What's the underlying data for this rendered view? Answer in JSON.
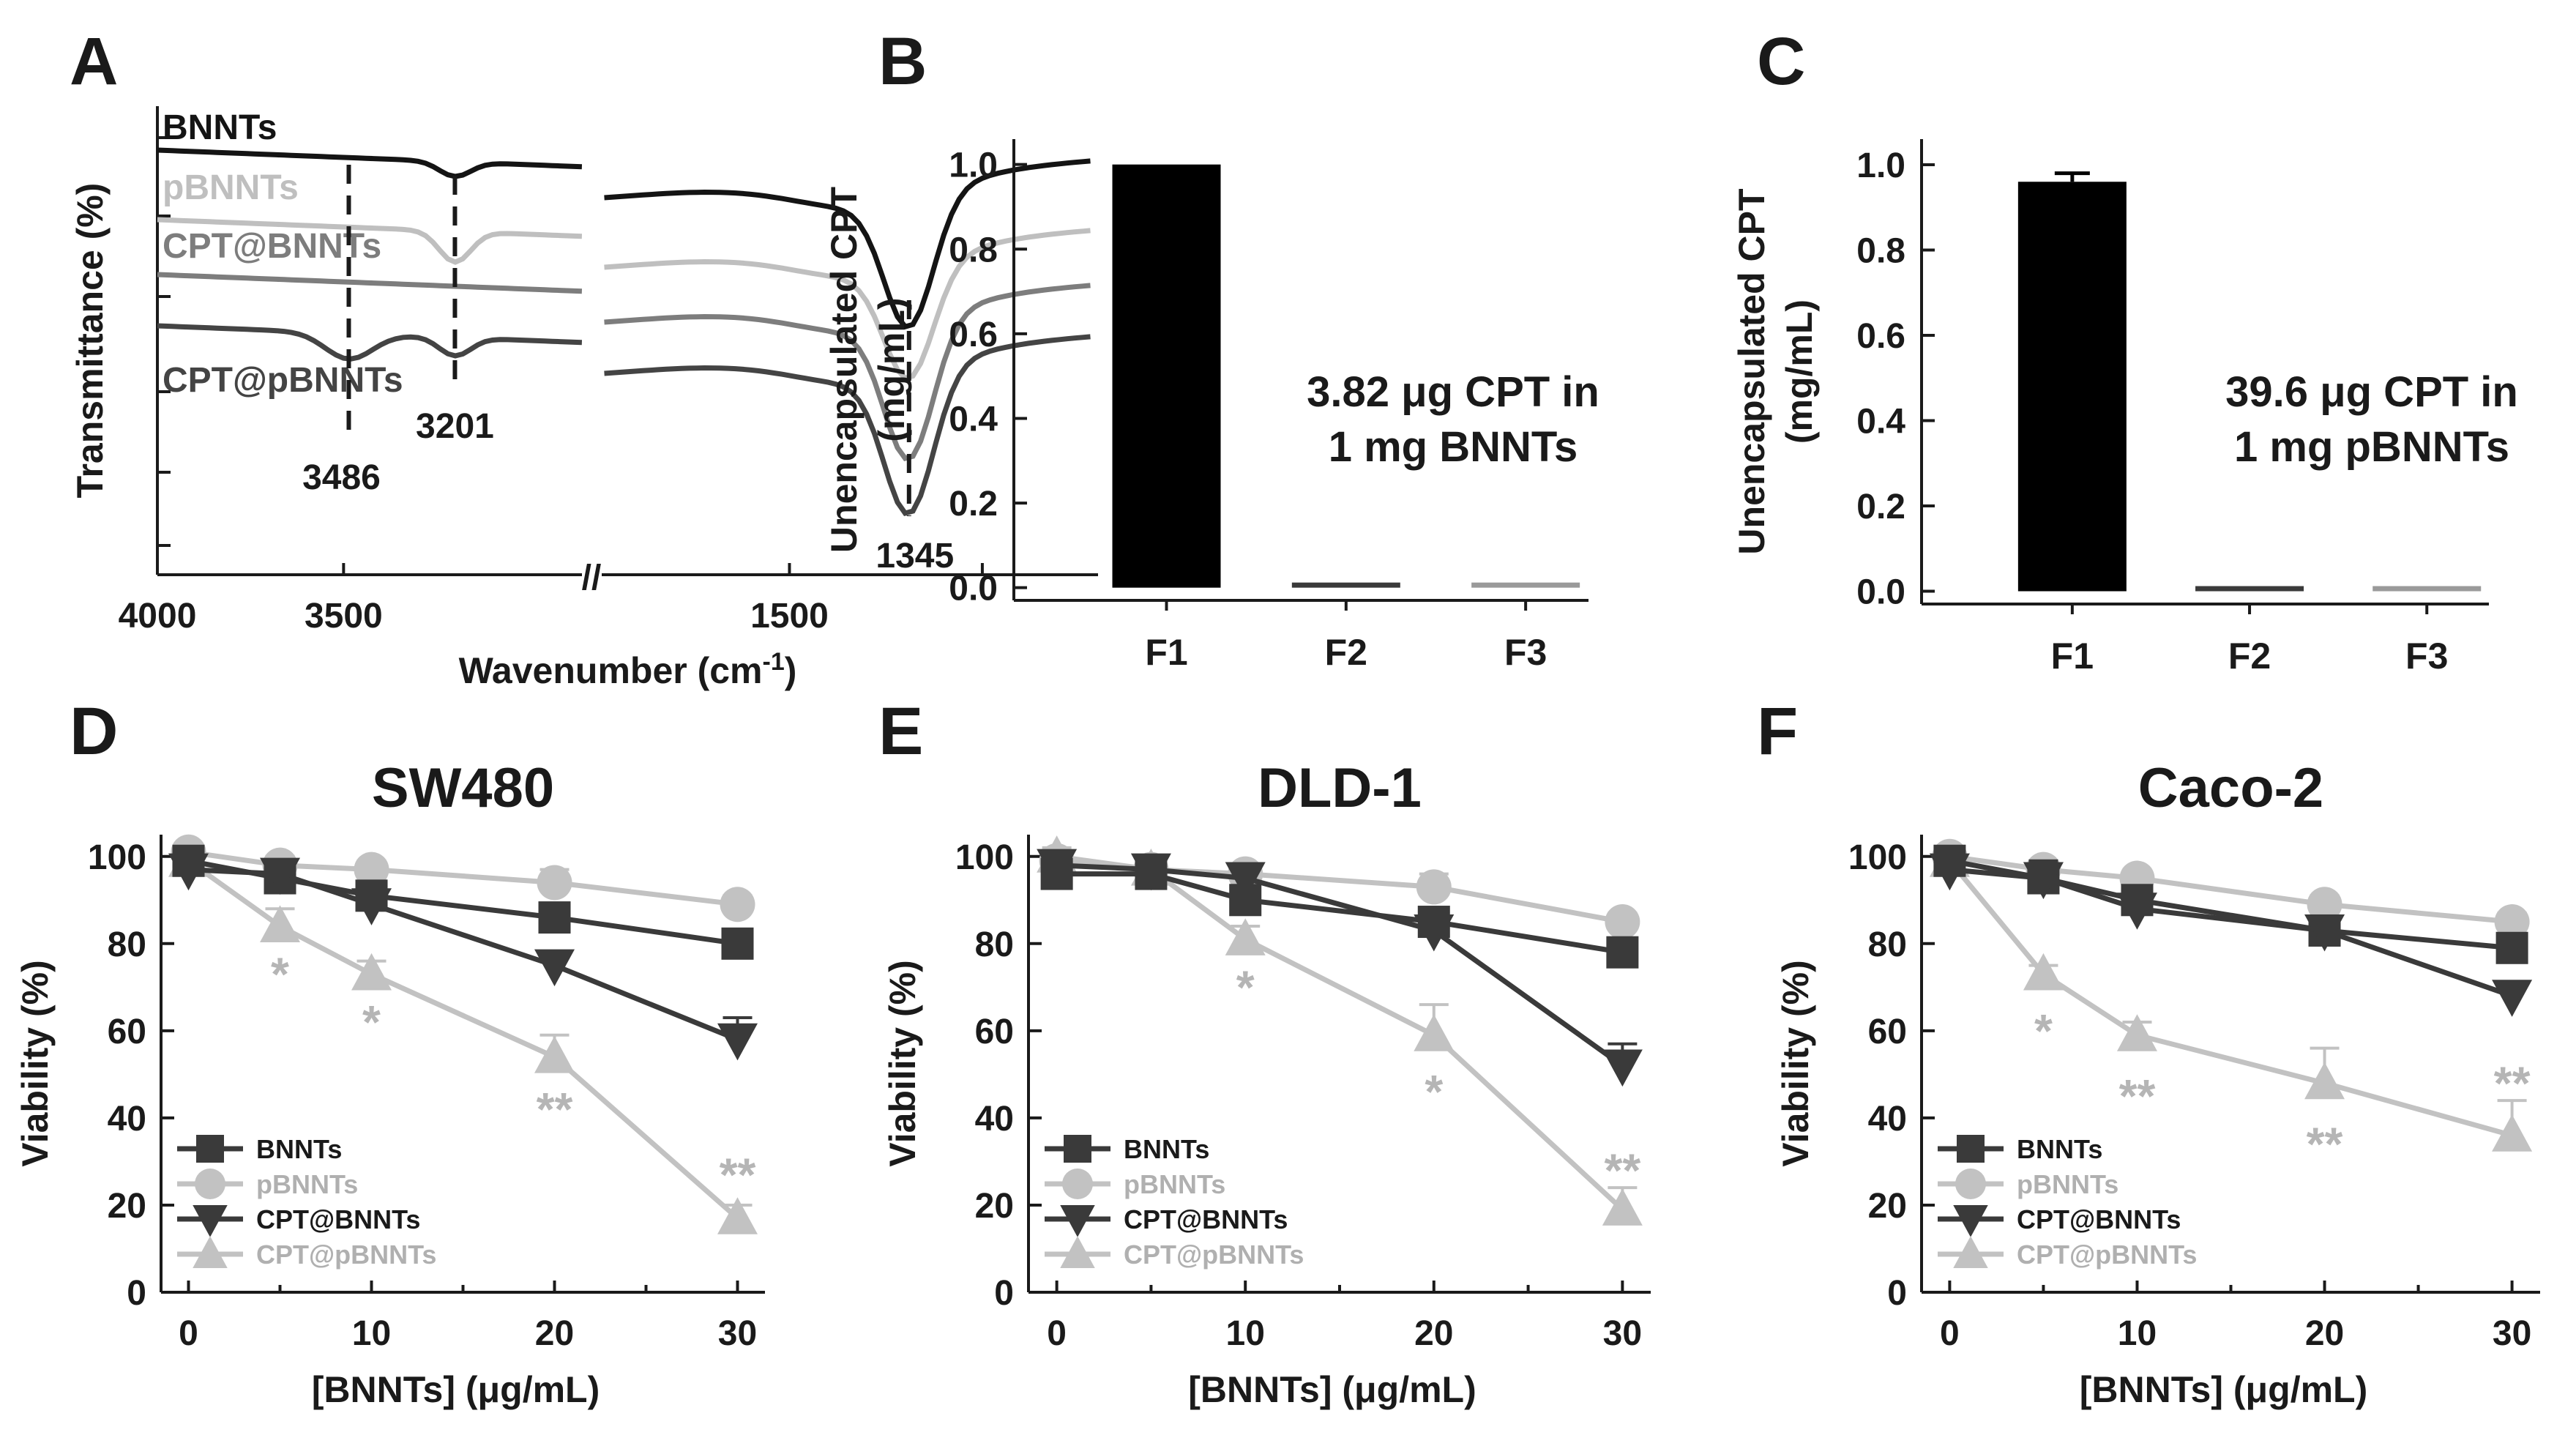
{
  "panels": {
    "A": "A",
    "B": "B",
    "C": "C",
    "D": "D",
    "E": "E",
    "F": "F"
  },
  "chart_data": [
    {
      "panel": "A",
      "type": "line",
      "xlabel": "Wavenumber (cm",
      "xlabel_sup": "-1",
      "ylabel": "Transmittance (%)",
      "x_ticks": [
        "4000",
        "3500",
        "1500"
      ],
      "axis_break": "//",
      "xlim_left": [
        4000,
        2850
      ],
      "xlim_right": [
        1750,
        1100
      ],
      "series": [
        {
          "name": "BNNTs",
          "color": "#141414"
        },
        {
          "name": "pBNNTs",
          "color": "#bfbfbf"
        },
        {
          "name": "CPT@BNNTs",
          "color": "#7d7d7d"
        },
        {
          "name": "CPT@pBNNTs",
          "color": "#444444"
        }
      ],
      "annotations": [
        "3486",
        "3201",
        "1345"
      ]
    },
    {
      "panel": "B",
      "type": "bar",
      "ylabel_line1": "Unencapsulated CPT",
      "ylabel_line2": "(mg/mL)",
      "categories": [
        "F1",
        "F2",
        "F3"
      ],
      "values": [
        1.0,
        0.005,
        0.004
      ],
      "errors": [
        0.0,
        0.0,
        0.0
      ],
      "colors": [
        "#000000",
        "#3a3a3a",
        "#9a9a9a"
      ],
      "ylim": [
        -0.03,
        1.06
      ],
      "y_ticks": [
        "0.0",
        "0.2",
        "0.4",
        "0.6",
        "0.8",
        "1.0"
      ],
      "annotation_line1": "3.82 μg CPT in",
      "annotation_line2": "1 mg BNNTs"
    },
    {
      "panel": "C",
      "type": "bar",
      "ylabel_line1": "Unencapsulated CPT",
      "ylabel_line2": "(mg/mL)",
      "categories": [
        "F1",
        "F2",
        "F3"
      ],
      "values": [
        0.96,
        0.01,
        0.004
      ],
      "errors": [
        0.02,
        0.0,
        0.0
      ],
      "colors": [
        "#000000",
        "#3a3a3a",
        "#9a9a9a"
      ],
      "ylim": [
        -0.03,
        1.06
      ],
      "y_ticks": [
        "0.0",
        "0.2",
        "0.4",
        "0.6",
        "0.8",
        "1.0"
      ],
      "annotation_line1": "39.6 μg CPT in",
      "annotation_line2": "1 mg pBNNTs"
    },
    {
      "panel": "D",
      "type": "line",
      "title": "SW480",
      "xlabel": "[BNNTs] (μg/mL)",
      "ylabel": "Viability (%)",
      "x": [
        0,
        5,
        10,
        20,
        30
      ],
      "x_ticks": [
        "0",
        "10",
        "20",
        "30"
      ],
      "y_ticks": [
        "0",
        "20",
        "40",
        "60",
        "80",
        "100"
      ],
      "xlim": [
        -1.5,
        31.5
      ],
      "ylim": [
        0,
        105
      ],
      "legend_position": "bottom-left",
      "series": [
        {
          "name": "BNNTs",
          "marker": "square",
          "color": "#3a3a3a",
          "values": [
            99,
            95,
            91,
            86,
            80
          ],
          "errors": [
            2,
            2,
            2,
            3,
            2
          ]
        },
        {
          "name": "pBNNTs",
          "marker": "circle",
          "color": "#c2c2c2",
          "values": [
            101,
            98,
            97,
            94,
            89
          ],
          "errors": [
            1,
            2,
            2,
            3,
            2
          ]
        },
        {
          "name": "CPT@BNNTs",
          "marker": "triangle-down",
          "color": "#3a3a3a",
          "values": [
            97,
            96,
            89,
            75,
            58
          ],
          "errors": [
            2,
            2,
            3,
            2,
            5
          ]
        },
        {
          "name": "CPT@pBNNTs",
          "marker": "triangle-up",
          "color": "#c2c2c2",
          "values": [
            99,
            84,
            73,
            54,
            17
          ],
          "errors": [
            2,
            4,
            3,
            5,
            3
          ]
        }
      ],
      "significance": [
        {
          "x": 5,
          "y": 73,
          "text": "*"
        },
        {
          "x": 10,
          "y": 62,
          "text": "*"
        },
        {
          "x": 20,
          "y": 42,
          "text": "**"
        },
        {
          "x": 30,
          "y": 27,
          "text": "**"
        }
      ]
    },
    {
      "panel": "E",
      "type": "line",
      "title": "DLD-1",
      "xlabel": "[BNNTs] (μg/mL)",
      "ylabel": "Viability (%)",
      "x": [
        0,
        5,
        10,
        20,
        30
      ],
      "x_ticks": [
        "0",
        "10",
        "20",
        "30"
      ],
      "y_ticks": [
        "0",
        "20",
        "40",
        "60",
        "80",
        "100"
      ],
      "xlim": [
        -1.5,
        31.5
      ],
      "ylim": [
        0,
        105
      ],
      "legend_position": "bottom-left",
      "series": [
        {
          "name": "BNNTs",
          "marker": "square",
          "color": "#3a3a3a",
          "values": [
            96,
            96,
            90,
            85,
            78
          ],
          "errors": [
            2,
            2,
            2,
            2,
            3
          ]
        },
        {
          "name": "pBNNTs",
          "marker": "circle",
          "color": "#c2c2c2",
          "values": [
            99,
            97,
            96,
            93,
            85
          ],
          "errors": [
            2,
            2,
            2,
            3,
            2
          ]
        },
        {
          "name": "CPT@BNNTs",
          "marker": "triangle-down",
          "color": "#3a3a3a",
          "values": [
            98,
            97,
            95,
            83,
            52
          ],
          "errors": [
            2,
            3,
            3,
            2,
            5
          ]
        },
        {
          "name": "CPT@pBNNTs",
          "marker": "triangle-up",
          "color": "#c2c2c2",
          "values": [
            100,
            97,
            81,
            59,
            19
          ],
          "errors": [
            2,
            2,
            3,
            7,
            5
          ]
        }
      ],
      "significance": [
        {
          "x": 10,
          "y": 70,
          "text": "*"
        },
        {
          "x": 20,
          "y": 46,
          "text": "*"
        },
        {
          "x": 30,
          "y": 28,
          "text": "**"
        }
      ]
    },
    {
      "panel": "F",
      "type": "line",
      "title": "Caco-2",
      "xlabel": "[BNNTs] (μg/mL)",
      "ylabel": "Viability (%)",
      "x": [
        0,
        5,
        10,
        20,
        30
      ],
      "x_ticks": [
        "0",
        "10",
        "20",
        "30"
      ],
      "y_ticks": [
        "0",
        "20",
        "40",
        "60",
        "80",
        "100"
      ],
      "xlim": [
        -1.5,
        31.5
      ],
      "ylim": [
        0,
        105
      ],
      "legend_position": "bottom-left",
      "series": [
        {
          "name": "BNNTs",
          "marker": "square",
          "color": "#3a3a3a",
          "values": [
            99,
            95,
            90,
            83,
            79
          ],
          "errors": [
            2,
            4,
            2,
            2,
            2
          ]
        },
        {
          "name": "pBNNTs",
          "marker": "circle",
          "color": "#c2c2c2",
          "values": [
            100,
            97,
            95,
            89,
            85
          ],
          "errors": [
            2,
            2,
            2,
            2,
            2
          ]
        },
        {
          "name": "CPT@BNNTs",
          "marker": "triangle-down",
          "color": "#3a3a3a",
          "values": [
            97,
            95,
            88,
            83,
            68
          ],
          "errors": [
            2,
            2,
            3,
            2,
            3
          ]
        },
        {
          "name": "CPT@pBNNTs",
          "marker": "triangle-up",
          "color": "#c2c2c2",
          "values": [
            99,
            73,
            59,
            48,
            36
          ],
          "errors": [
            2,
            2,
            3,
            8,
            8
          ]
        }
      ],
      "significance": [
        {
          "x": 5,
          "y": 60,
          "text": "*"
        },
        {
          "x": 10,
          "y": 45,
          "text": "**"
        },
        {
          "x": 20,
          "y": 34,
          "text": "**"
        },
        {
          "x": 30,
          "y": 48,
          "text": "**"
        }
      ]
    }
  ]
}
